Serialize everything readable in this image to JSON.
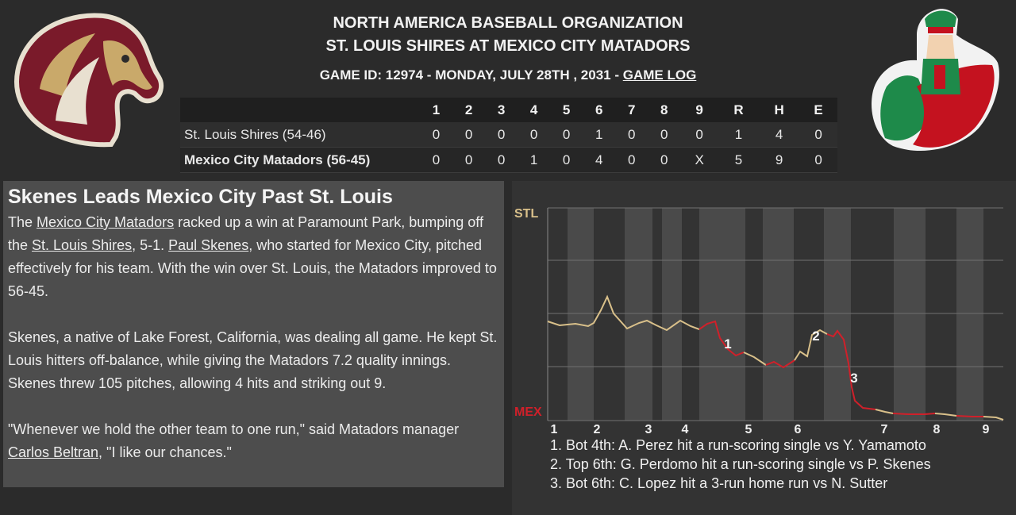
{
  "header": {
    "organization": "NORTH AMERICA BASEBALL ORGANIZATION",
    "matchup": "ST. LOUIS SHIRES AT MEXICO CITY MATADORS",
    "game_info": "GAME ID: 12974 - MONDAY, JULY 28TH , 2031 - ",
    "game_log_link": "GAME LOG"
  },
  "logos": {
    "away": "horse-head-logo",
    "home": "matador-logo"
  },
  "boxscore": {
    "columns": [
      "",
      "1",
      "2",
      "3",
      "4",
      "5",
      "6",
      "7",
      "8",
      "9",
      "R",
      "H",
      "E"
    ],
    "rows": [
      {
        "team": "St. Louis Shires (54-46)",
        "values": [
          "0",
          "0",
          "0",
          "0",
          "0",
          "1",
          "0",
          "0",
          "0",
          "1",
          "4",
          "0"
        ]
      },
      {
        "team": "Mexico City Matadors (56-45)",
        "values": [
          "0",
          "0",
          "0",
          "1",
          "0",
          "4",
          "0",
          "0",
          "X",
          "5",
          "9",
          "0"
        ]
      }
    ]
  },
  "story": {
    "headline": "Skenes Leads Mexico City Past St. Louis",
    "p1": {
      "t1": "The ",
      "link1": "Mexico City Matadors",
      "t2": " racked up a win at Paramount Park, bumping off the ",
      "link2": "St. Louis Shires",
      "t3": ", 5-1. ",
      "link3": "Paul Skenes",
      "t4": ", who started for Mexico City, pitched effectively for his team. With the win over St. Louis, the Matadors improved to 56-45."
    },
    "p2": "Skenes, a native of Lake Forest, California, was dealing all game. He kept St. Louis hitters off-balance, while giving the Matadors 7.2 quality innings. Skenes threw 105 pitches, allowing 4 hits and striking out 9.",
    "p3": {
      "t1": "\"Whenever we hold the other team to one run,\" said Matadors manager ",
      "link": "Carlos Beltran",
      "t2": ", \"I like our chances.\""
    }
  },
  "chart_data": {
    "type": "line",
    "top_label": "STL",
    "bottom_label": "MEX",
    "x_ticks": [
      "1",
      "2",
      "3",
      "4",
      "5",
      "6",
      "7",
      "8",
      "9"
    ],
    "markers": [
      "1",
      "2",
      "3"
    ],
    "colors": {
      "stl": "#d9c08a",
      "mex": "#d0202a"
    },
    "events": [
      "1. Bot 4th: A. Perez hit a run-scoring single vs Y. Yamamoto",
      "2. Top 6th: G. Perdomo hit a run-scoring single vs P. Skenes",
      "3. Bot 6th: C. Lopez hit a 3-run home run vs N. Sutter"
    ]
  }
}
